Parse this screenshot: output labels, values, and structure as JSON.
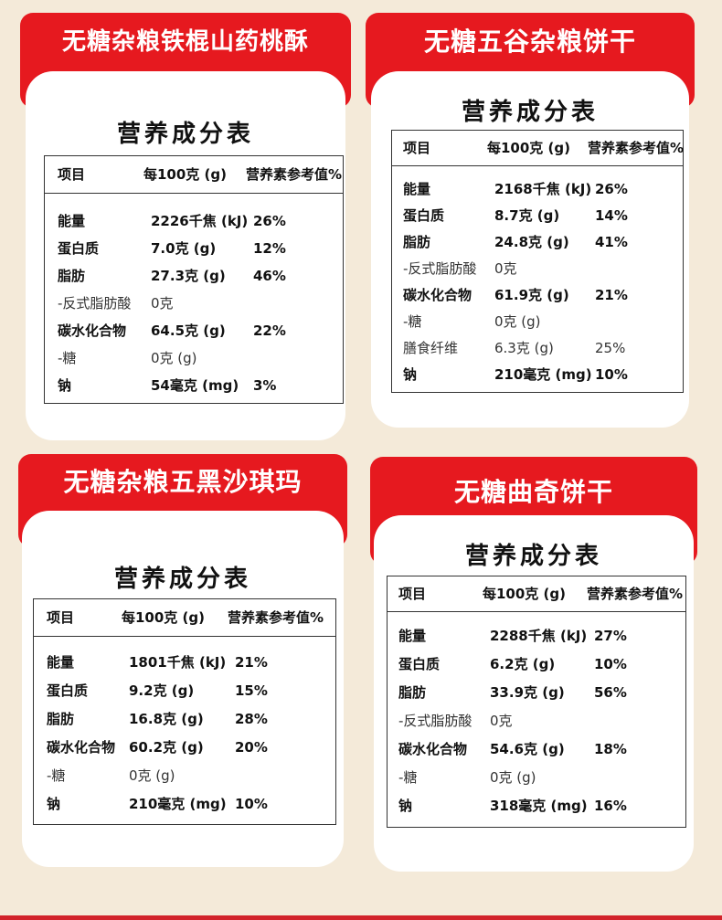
{
  "colors": {
    "background": "#f4ead9",
    "tab": "#e6191f",
    "panel": "#ffffff"
  },
  "panel_title": "营养成分表",
  "cards": [
    {
      "product": "无糖杂粮铁棍山药桃酥",
      "headers": [
        "项目",
        "每100克 (g)",
        "营养素参考值%"
      ],
      "rows": [
        {
          "name": "能量",
          "amount": "2226千焦 (kJ)",
          "nrv": "26%"
        },
        {
          "name": "蛋白质",
          "amount": "7.0克 (g)",
          "nrv": "12%"
        },
        {
          "name": "脂肪",
          "amount": "27.3克 (g)",
          "nrv": "46%"
        },
        {
          "name": "-反式脂肪酸",
          "amount": "0克",
          "nrv": ""
        },
        {
          "name": "碳水化合物",
          "amount": "64.5克 (g)",
          "nrv": "22%"
        },
        {
          "name": "-糖",
          "amount": "0克 (g)",
          "nrv": ""
        },
        {
          "name": "钠",
          "amount": "54毫克 (mg)",
          "nrv": "3%"
        }
      ]
    },
    {
      "product": "无糖五谷杂粮饼干",
      "headers": [
        "项目",
        "每100克 (g)",
        "营养素参考值%"
      ],
      "rows": [
        {
          "name": "能量",
          "amount": "2168千焦 (kJ)",
          "nrv": "26%"
        },
        {
          "name": "蛋白质",
          "amount": "8.7克 (g)",
          "nrv": "14%"
        },
        {
          "name": "脂肪",
          "amount": "24.8克 (g)",
          "nrv": "41%"
        },
        {
          "name": "-反式脂肪酸",
          "amount": "0克",
          "nrv": ""
        },
        {
          "name": "碳水化合物",
          "amount": "61.9克 (g)",
          "nrv": "21%"
        },
        {
          "name": "-糖",
          "amount": "0克 (g)",
          "nrv": ""
        },
        {
          "name": "膳食纤维",
          "amount": "6.3克 (g)",
          "nrv": "25%"
        },
        {
          "name": "钠",
          "amount": "210毫克 (mg)",
          "nrv": "10%"
        }
      ]
    },
    {
      "product": "无糖杂粮五黑沙琪玛",
      "headers": [
        "项目",
        "每100克 (g)",
        "营养素参考值%"
      ],
      "rows": [
        {
          "name": "能量",
          "amount": "1801千焦 (kJ)",
          "nrv": "21%"
        },
        {
          "name": "蛋白质",
          "amount": "9.2克 (g)",
          "nrv": "15%"
        },
        {
          "name": "脂肪",
          "amount": "16.8克 (g)",
          "nrv": "28%"
        },
        {
          "name": "碳水化合物",
          "amount": "60.2克 (g)",
          "nrv": "20%"
        },
        {
          "name": "-糖",
          "amount": "0克 (g)",
          "nrv": ""
        },
        {
          "name": "钠",
          "amount": "210毫克 (mg)",
          "nrv": "10%"
        }
      ]
    },
    {
      "product": "无糖曲奇饼干",
      "headers": [
        "项目",
        "每100克 (g)",
        "营养素参考值%"
      ],
      "rows": [
        {
          "name": "能量",
          "amount": "2288千焦 (kJ)",
          "nrv": "27%"
        },
        {
          "name": "蛋白质",
          "amount": "6.2克 (g)",
          "nrv": "10%"
        },
        {
          "name": "脂肪",
          "amount": "33.9克 (g)",
          "nrv": "56%"
        },
        {
          "name": "-反式脂肪酸",
          "amount": "0克",
          "nrv": ""
        },
        {
          "name": "碳水化合物",
          "amount": "54.6克 (g)",
          "nrv": "18%"
        },
        {
          "name": "-糖",
          "amount": "0克 (g)",
          "nrv": ""
        },
        {
          "name": "钠",
          "amount": "318毫克 (mg)",
          "nrv": "16%"
        }
      ]
    }
  ]
}
